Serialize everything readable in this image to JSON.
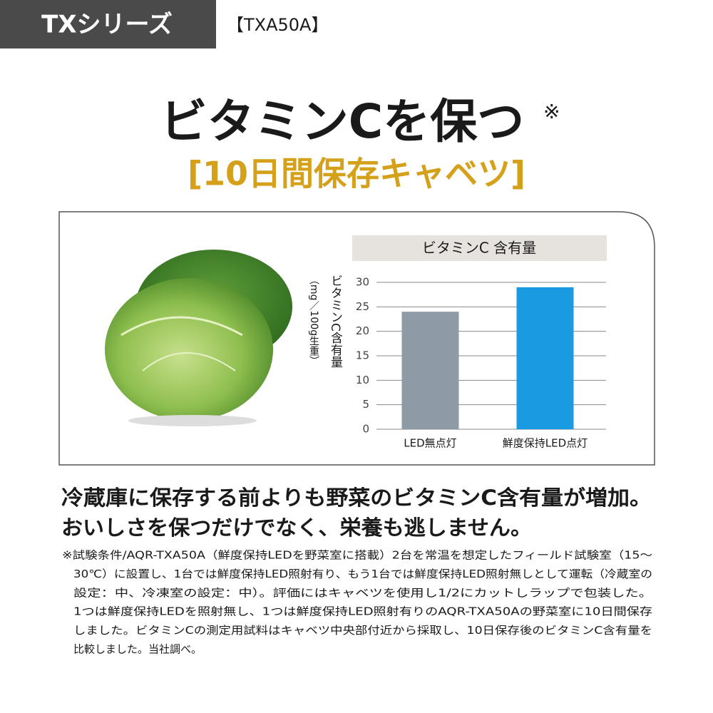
{
  "header": {
    "series": "TXシリーズ",
    "model": "【TXA50A】"
  },
  "title": "ビタミンCを保つ",
  "title_mark": "※",
  "subtitle": "[10日間保存キャベツ]",
  "chart_data": {
    "type": "bar",
    "title": "ビタミンC 含有量",
    "ylabel": "ビタミンC含有量",
    "yunit": "（mg／100g生重）",
    "categories": [
      "LED無点灯",
      "鮮度保持LED点灯"
    ],
    "series": [
      {
        "name": "ビタミンC含有量",
        "values": [
          24,
          29
        ]
      }
    ],
    "colors": [
      "#8e9ba6",
      "#1a9ae0"
    ],
    "ylim": [
      0,
      30
    ],
    "yticks": [
      0,
      5,
      10,
      15,
      20,
      25,
      30
    ],
    "grid": true
  },
  "body": [
    "冷蔵庫に保存する前よりも野菜のビタミンC含有量が増加。",
    "おいしさを保つだけでなく、栄養も逃しません。"
  ],
  "footnote": [
    "※試験条件/AQR-TXA50A（鮮度保持LEDを野菜室に搭載）2台を常温を想定したフィールド試験室（15～",
    "30℃）に設置し、1台では鮮度保持LED照射有り、もう1台では鮮度保持LED照射無しとして運転（冷蔵室の",
    "設定：中、冷凍室の設定：中）。評価にはキャベツを使用し1/2にカットしラップで包装した。",
    "1つは鮮度保持LEDを照射無し、1つは鮮度保持LED照射有りのAQR-TXA50Aの野菜室に10日間保存",
    "しました。ビタミンCの測定用試料はキャベツ中央部付近から採取し、10日保存後のビタミンC含有量を",
    "比較しました。当社調べ。"
  ]
}
